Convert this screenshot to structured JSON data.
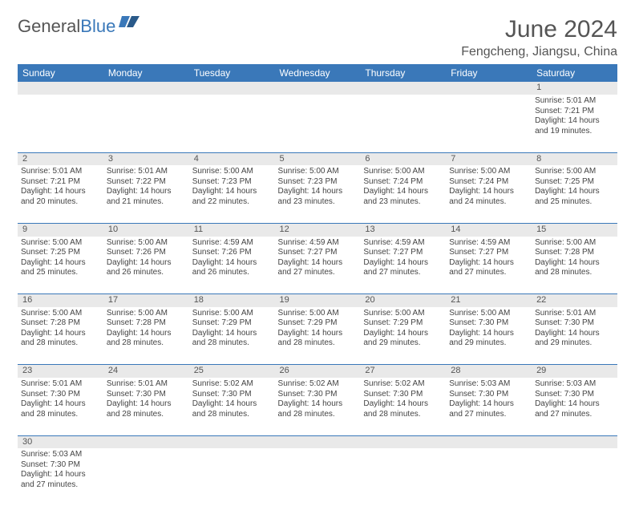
{
  "logo": {
    "part1": "General",
    "part2": "Blue"
  },
  "title": "June 2024",
  "location": "Fengcheng, Jiangsu, China",
  "colors": {
    "header_bg": "#3a78b9",
    "daynum_bg": "#e9e9e9",
    "text": "#444444",
    "title_color": "#555555"
  },
  "dayNames": [
    "Sunday",
    "Monday",
    "Tuesday",
    "Wednesday",
    "Thursday",
    "Friday",
    "Saturday"
  ],
  "weeks": [
    [
      null,
      null,
      null,
      null,
      null,
      null,
      {
        "n": "1",
        "sr": "Sunrise: 5:01 AM",
        "ss": "Sunset: 7:21 PM",
        "d1": "Daylight: 14 hours",
        "d2": "and 19 minutes."
      }
    ],
    [
      {
        "n": "2",
        "sr": "Sunrise: 5:01 AM",
        "ss": "Sunset: 7:21 PM",
        "d1": "Daylight: 14 hours",
        "d2": "and 20 minutes."
      },
      {
        "n": "3",
        "sr": "Sunrise: 5:01 AM",
        "ss": "Sunset: 7:22 PM",
        "d1": "Daylight: 14 hours",
        "d2": "and 21 minutes."
      },
      {
        "n": "4",
        "sr": "Sunrise: 5:00 AM",
        "ss": "Sunset: 7:23 PM",
        "d1": "Daylight: 14 hours",
        "d2": "and 22 minutes."
      },
      {
        "n": "5",
        "sr": "Sunrise: 5:00 AM",
        "ss": "Sunset: 7:23 PM",
        "d1": "Daylight: 14 hours",
        "d2": "and 23 minutes."
      },
      {
        "n": "6",
        "sr": "Sunrise: 5:00 AM",
        "ss": "Sunset: 7:24 PM",
        "d1": "Daylight: 14 hours",
        "d2": "and 23 minutes."
      },
      {
        "n": "7",
        "sr": "Sunrise: 5:00 AM",
        "ss": "Sunset: 7:24 PM",
        "d1": "Daylight: 14 hours",
        "d2": "and 24 minutes."
      },
      {
        "n": "8",
        "sr": "Sunrise: 5:00 AM",
        "ss": "Sunset: 7:25 PM",
        "d1": "Daylight: 14 hours",
        "d2": "and 25 minutes."
      }
    ],
    [
      {
        "n": "9",
        "sr": "Sunrise: 5:00 AM",
        "ss": "Sunset: 7:25 PM",
        "d1": "Daylight: 14 hours",
        "d2": "and 25 minutes."
      },
      {
        "n": "10",
        "sr": "Sunrise: 5:00 AM",
        "ss": "Sunset: 7:26 PM",
        "d1": "Daylight: 14 hours",
        "d2": "and 26 minutes."
      },
      {
        "n": "11",
        "sr": "Sunrise: 4:59 AM",
        "ss": "Sunset: 7:26 PM",
        "d1": "Daylight: 14 hours",
        "d2": "and 26 minutes."
      },
      {
        "n": "12",
        "sr": "Sunrise: 4:59 AM",
        "ss": "Sunset: 7:27 PM",
        "d1": "Daylight: 14 hours",
        "d2": "and 27 minutes."
      },
      {
        "n": "13",
        "sr": "Sunrise: 4:59 AM",
        "ss": "Sunset: 7:27 PM",
        "d1": "Daylight: 14 hours",
        "d2": "and 27 minutes."
      },
      {
        "n": "14",
        "sr": "Sunrise: 4:59 AM",
        "ss": "Sunset: 7:27 PM",
        "d1": "Daylight: 14 hours",
        "d2": "and 27 minutes."
      },
      {
        "n": "15",
        "sr": "Sunrise: 5:00 AM",
        "ss": "Sunset: 7:28 PM",
        "d1": "Daylight: 14 hours",
        "d2": "and 28 minutes."
      }
    ],
    [
      {
        "n": "16",
        "sr": "Sunrise: 5:00 AM",
        "ss": "Sunset: 7:28 PM",
        "d1": "Daylight: 14 hours",
        "d2": "and 28 minutes."
      },
      {
        "n": "17",
        "sr": "Sunrise: 5:00 AM",
        "ss": "Sunset: 7:28 PM",
        "d1": "Daylight: 14 hours",
        "d2": "and 28 minutes."
      },
      {
        "n": "18",
        "sr": "Sunrise: 5:00 AM",
        "ss": "Sunset: 7:29 PM",
        "d1": "Daylight: 14 hours",
        "d2": "and 28 minutes."
      },
      {
        "n": "19",
        "sr": "Sunrise: 5:00 AM",
        "ss": "Sunset: 7:29 PM",
        "d1": "Daylight: 14 hours",
        "d2": "and 28 minutes."
      },
      {
        "n": "20",
        "sr": "Sunrise: 5:00 AM",
        "ss": "Sunset: 7:29 PM",
        "d1": "Daylight: 14 hours",
        "d2": "and 29 minutes."
      },
      {
        "n": "21",
        "sr": "Sunrise: 5:00 AM",
        "ss": "Sunset: 7:30 PM",
        "d1": "Daylight: 14 hours",
        "d2": "and 29 minutes."
      },
      {
        "n": "22",
        "sr": "Sunrise: 5:01 AM",
        "ss": "Sunset: 7:30 PM",
        "d1": "Daylight: 14 hours",
        "d2": "and 29 minutes."
      }
    ],
    [
      {
        "n": "23",
        "sr": "Sunrise: 5:01 AM",
        "ss": "Sunset: 7:30 PM",
        "d1": "Daylight: 14 hours",
        "d2": "and 28 minutes."
      },
      {
        "n": "24",
        "sr": "Sunrise: 5:01 AM",
        "ss": "Sunset: 7:30 PM",
        "d1": "Daylight: 14 hours",
        "d2": "and 28 minutes."
      },
      {
        "n": "25",
        "sr": "Sunrise: 5:02 AM",
        "ss": "Sunset: 7:30 PM",
        "d1": "Daylight: 14 hours",
        "d2": "and 28 minutes."
      },
      {
        "n": "26",
        "sr": "Sunrise: 5:02 AM",
        "ss": "Sunset: 7:30 PM",
        "d1": "Daylight: 14 hours",
        "d2": "and 28 minutes."
      },
      {
        "n": "27",
        "sr": "Sunrise: 5:02 AM",
        "ss": "Sunset: 7:30 PM",
        "d1": "Daylight: 14 hours",
        "d2": "and 28 minutes."
      },
      {
        "n": "28",
        "sr": "Sunrise: 5:03 AM",
        "ss": "Sunset: 7:30 PM",
        "d1": "Daylight: 14 hours",
        "d2": "and 27 minutes."
      },
      {
        "n": "29",
        "sr": "Sunrise: 5:03 AM",
        "ss": "Sunset: 7:30 PM",
        "d1": "Daylight: 14 hours",
        "d2": "and 27 minutes."
      }
    ],
    [
      {
        "n": "30",
        "sr": "Sunrise: 5:03 AM",
        "ss": "Sunset: 7:30 PM",
        "d1": "Daylight: 14 hours",
        "d2": "and 27 minutes."
      },
      null,
      null,
      null,
      null,
      null,
      null
    ]
  ]
}
